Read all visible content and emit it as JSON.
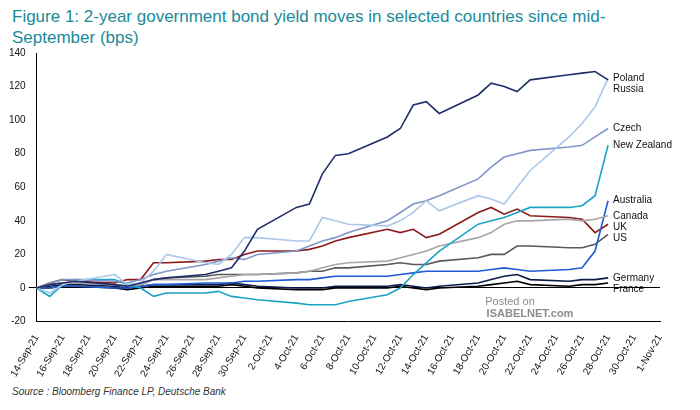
{
  "chart_data": {
    "type": "line",
    "title": "Figure 1: 2-year government bond yield moves in selected countries since mid-September (bps)",
    "source": "Source : Bloomberg Finance LP, Deutsche Bank",
    "watermark": [
      "Posted on",
      "ISABELNET.com"
    ],
    "categories": [
      "14-Sep-21",
      null,
      "16-Sep-21",
      null,
      "18-Sep-21",
      null,
      "20-Sep-21",
      null,
      "22-Sep-21",
      null,
      "24-Sep-21",
      null,
      "26-Sep-21",
      null,
      "28-Sep-21",
      null,
      "30-Sep-21",
      null,
      "2-Oct-21",
      null,
      "4-Oct-21",
      null,
      "6-Oct-21",
      null,
      "8-Oct-21",
      null,
      "10-Oct-21",
      null,
      "12-Oct-21",
      null,
      "14-Oct-21",
      null,
      "16-Oct-21",
      null,
      "18-Oct-21",
      null,
      "20-Oct-21",
      null,
      "22-Oct-21",
      null,
      "24-Oct-21",
      null,
      "26-Oct-21",
      null,
      "28-Oct-21",
      null,
      "30-Oct-21",
      null,
      "1-Nov-21"
    ],
    "ylim": [
      -20,
      140
    ],
    "yticks": [
      -20,
      0,
      20,
      40,
      60,
      80,
      100,
      120,
      140
    ],
    "grid": false,
    "series": [
      {
        "name": "Russia",
        "color": "#1f2d6b",
        "values": [
          0,
          2,
          3,
          4,
          null,
          null,
          2,
          1,
          3,
          5,
          6,
          null,
          null,
          8,
          10,
          12,
          22,
          35,
          null,
          null,
          48,
          50,
          68,
          79,
          80,
          null,
          null,
          90,
          95,
          109,
          111,
          104,
          null,
          null,
          115,
          122,
          120,
          117,
          124,
          null,
          null,
          127,
          128,
          129,
          124,
          null,
          null,
          null,
          null
        ]
      },
      {
        "name": "Poland",
        "color": "#a9c8ea",
        "values": [
          0,
          -3,
          2,
          4,
          null,
          null,
          8,
          2,
          3,
          10,
          20,
          null,
          null,
          15,
          14,
          20,
          30,
          30,
          null,
          null,
          28,
          28,
          42,
          40,
          38,
          null,
          null,
          37,
          40,
          45,
          52,
          46,
          null,
          null,
          55,
          53,
          50,
          60,
          70,
          null,
          null,
          90,
          98,
          108,
          125,
          null,
          null,
          null,
          null
        ]
      },
      {
        "name": "Czech",
        "color": "#7f96c8",
        "values": [
          0,
          3,
          5,
          5,
          null,
          null,
          4,
          3,
          5,
          8,
          10,
          null,
          null,
          14,
          16,
          18,
          17,
          20,
          null,
          null,
          22,
          25,
          28,
          30,
          33,
          null,
          null,
          40,
          45,
          50,
          52,
          55,
          null,
          null,
          65,
          72,
          78,
          80,
          82,
          null,
          null,
          84,
          85,
          90,
          95,
          null,
          null,
          null,
          null
        ]
      },
      {
        "name": "New Zealand",
        "color": "#1ba3c6",
        "values": [
          0,
          -5,
          2,
          5,
          null,
          null,
          5,
          2,
          0,
          -5,
          -3,
          null,
          null,
          -3,
          -2,
          -5,
          -6,
          -7,
          null,
          null,
          -9,
          -10,
          -10,
          -10,
          -8,
          null,
          null,
          -4,
          0,
          8,
          15,
          22,
          null,
          null,
          38,
          40,
          42,
          45,
          48,
          null,
          null,
          48,
          49,
          55,
          85,
          null,
          null,
          null,
          null
        ]
      },
      {
        "name": "Canada",
        "color": "#a6a6a6",
        "values": [
          0,
          2,
          3,
          3,
          null,
          null,
          2,
          1,
          2,
          5,
          5,
          null,
          null,
          5,
          6,
          7,
          8,
          8,
          null,
          null,
          9,
          10,
          12,
          14,
          15,
          null,
          null,
          16,
          18,
          20,
          22,
          25,
          null,
          null,
          30,
          33,
          38,
          40,
          40,
          null,
          null,
          41,
          40,
          41,
          43,
          null,
          null,
          null,
          null
        ]
      },
      {
        "name": "Australia",
        "color": "#1f5bd6",
        "values": [
          0,
          0,
          1,
          1,
          null,
          null,
          0,
          0,
          1,
          2,
          2,
          null,
          null,
          3,
          3,
          3,
          4,
          4,
          null,
          null,
          5,
          5,
          6,
          7,
          7,
          null,
          null,
          7,
          8,
          9,
          10,
          10,
          null,
          null,
          10,
          11,
          12,
          11,
          10,
          null,
          null,
          11,
          12,
          22,
          52,
          null,
          null,
          null,
          null
        ]
      },
      {
        "name": "UK",
        "color": "#8b1a1a",
        "values": [
          0,
          3,
          5,
          4,
          null,
          null,
          3,
          5,
          5,
          15,
          15,
          null,
          null,
          16,
          17,
          17,
          20,
          22,
          null,
          null,
          22,
          23,
          25,
          28,
          30,
          null,
          null,
          35,
          33,
          35,
          30,
          32,
          null,
          null,
          45,
          48,
          44,
          47,
          43,
          null,
          null,
          42,
          41,
          33,
          38,
          null,
          null,
          null,
          null
        ]
      },
      {
        "name": "US",
        "color": "#595959",
        "values": [
          0,
          2,
          3,
          3,
          null,
          null,
          2,
          1,
          2,
          5,
          6,
          null,
          null,
          7,
          8,
          8,
          8,
          8,
          null,
          null,
          9,
          10,
          10,
          12,
          12,
          null,
          null,
          14,
          15,
          14,
          14,
          16,
          null,
          null,
          18,
          20,
          20,
          25,
          25,
          null,
          null,
          24,
          24,
          26,
          32,
          null,
          null,
          null,
          null
        ]
      },
      {
        "name": "Germany",
        "color": "#0d1b4b",
        "values": [
          0,
          1,
          2,
          2,
          null,
          null,
          1,
          0,
          1,
          2,
          2,
          null,
          null,
          2,
          2,
          3,
          2,
          1,
          null,
          null,
          0,
          0,
          0,
          1,
          1,
          null,
          null,
          1,
          2,
          1,
          0,
          1,
          null,
          null,
          3,
          5,
          7,
          8,
          5,
          null,
          null,
          4,
          5,
          5,
          6,
          null,
          null,
          null,
          null
        ]
      },
      {
        "name": "France",
        "color": "#000000",
        "values": [
          0,
          0,
          1,
          1,
          null,
          null,
          0,
          -1,
          0,
          1,
          1,
          null,
          null,
          1,
          1,
          2,
          1,
          0,
          null,
          null,
          -1,
          -1,
          -1,
          0,
          0,
          null,
          null,
          0,
          1,
          0,
          -1,
          0,
          null,
          null,
          1,
          2,
          3,
          4,
          2,
          null,
          null,
          1,
          2,
          2,
          3,
          null,
          null,
          null,
          null
        ]
      }
    ]
  }
}
